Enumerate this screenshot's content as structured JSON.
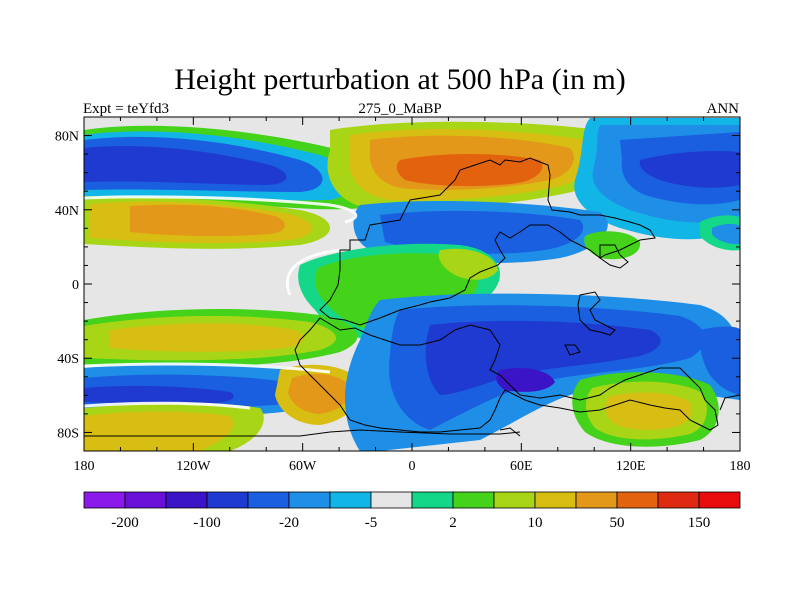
{
  "title": "Height perturbation at 500 hPa (in m)",
  "subtitle_left": "Expt = teYfd3",
  "subtitle_center": "275_0_MaBP",
  "subtitle_right": "ANN",
  "map": {
    "lat_range": [
      -90,
      90
    ],
    "lon_range": [
      -180,
      180
    ],
    "y_tick_labels": [
      "80N",
      "40N",
      "0",
      "40S",
      "80S"
    ],
    "x_tick_labels": [
      "180",
      "120W",
      "60W",
      "0",
      "60E",
      "120E",
      "180"
    ]
  },
  "colorbar": {
    "colors": [
      "#8b1aea",
      "#6a10d8",
      "#3b14c8",
      "#1f3ad0",
      "#1a5fe0",
      "#1e8ee6",
      "#12b6e6",
      "#e6e6e6",
      "#14d888",
      "#44d21a",
      "#a8d616",
      "#d8be12",
      "#e4981a",
      "#e2620e",
      "#de2a10",
      "#e80c0c"
    ],
    "labels": [
      "-200",
      "-100",
      "-20",
      "-5",
      "2",
      "10",
      "50",
      "150"
    ]
  }
}
